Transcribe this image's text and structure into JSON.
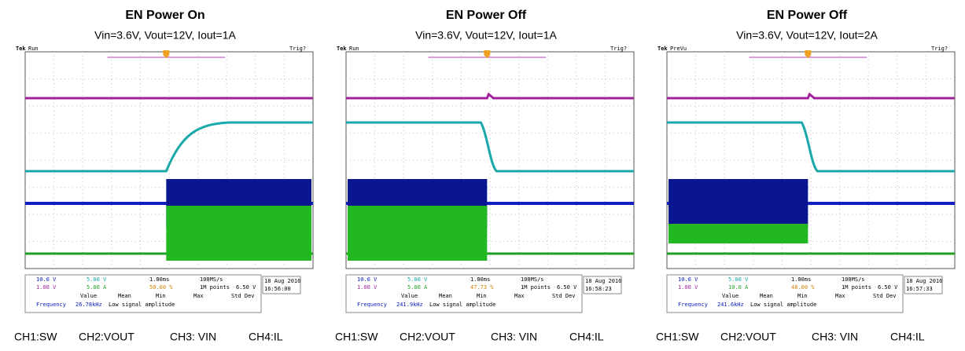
{
  "panels": [
    {
      "title": "EN Power On",
      "subtitle": "Vin=3.6V, Vout=12V, Iout=1A",
      "brand": "Tek",
      "status": "Run",
      "trigger": "Trig?",
      "ch1": "10.0 V",
      "ch2": "5.00 V",
      "ch3": "1.00 V",
      "ch4": "5.00 A",
      "timebase": "1.00ms",
      "rate": "100MS/s",
      "points": "1M points",
      "level": "6.50 V",
      "position": "50.60 %",
      "date": "18 Aug 2016",
      "time": "16:56:00",
      "stats": [
        "Value",
        "Mean",
        "Min",
        "Max",
        "Std Dev"
      ],
      "measurement": "Frequency",
      "frequency": "26.78kHz",
      "note": "Low signal amplitude",
      "caption": [
        "CH1:SW",
        "CH2:VOUT",
        "CH3: VIN",
        "CH4:IL"
      ]
    },
    {
      "title": "EN Power Off",
      "subtitle": "Vin=3.6V, Vout=12V, Iout=1A",
      "brand": "Tek",
      "status": "Run",
      "trigger": "Trig?",
      "ch1": "10.0 V",
      "ch2": "5.00 V",
      "ch3": "1.00 V",
      "ch4": "5.00 A",
      "timebase": "1.00ms",
      "rate": "100MS/s",
      "points": "1M points",
      "level": "6.50 V",
      "position": "47.73 %",
      "date": "18 Aug 2016",
      "time": "16:58:23",
      "stats": [
        "Value",
        "Mean",
        "Min",
        "Max",
        "Std Dev"
      ],
      "measurement": "Frequency",
      "frequency": "241.9kHz",
      "note": "Low signal amplitude",
      "caption": [
        "CH1:SW",
        "CH2:VOUT",
        "CH3: VIN",
        "CH4:IL"
      ]
    },
    {
      "title": "EN Power Off",
      "subtitle": "Vin=3.6V, Vout=12V, Iout=2A",
      "brand": "Tek",
      "status": "PreVu",
      "trigger": "Trig?",
      "ch1": "10.0 V",
      "ch2": "5.00 V",
      "ch3": "1.00 V",
      "ch4": "10.0 A",
      "timebase": "1.00ms",
      "rate": "100MS/s",
      "points": "1M points",
      "level": "6.50 V",
      "position": "48.00 %",
      "date": "18 Aug 2016",
      "time": "16:57:33",
      "stats": [
        "Value",
        "Mean",
        "Min",
        "Max",
        "Std Dev"
      ],
      "measurement": "Frequency",
      "frequency": "241.6kHz",
      "note": "Low signal amplitude",
      "caption": [
        "CH1:SW",
        "CH2:VOUT",
        "CH3: VIN",
        "CH4:IL"
      ]
    }
  ]
}
